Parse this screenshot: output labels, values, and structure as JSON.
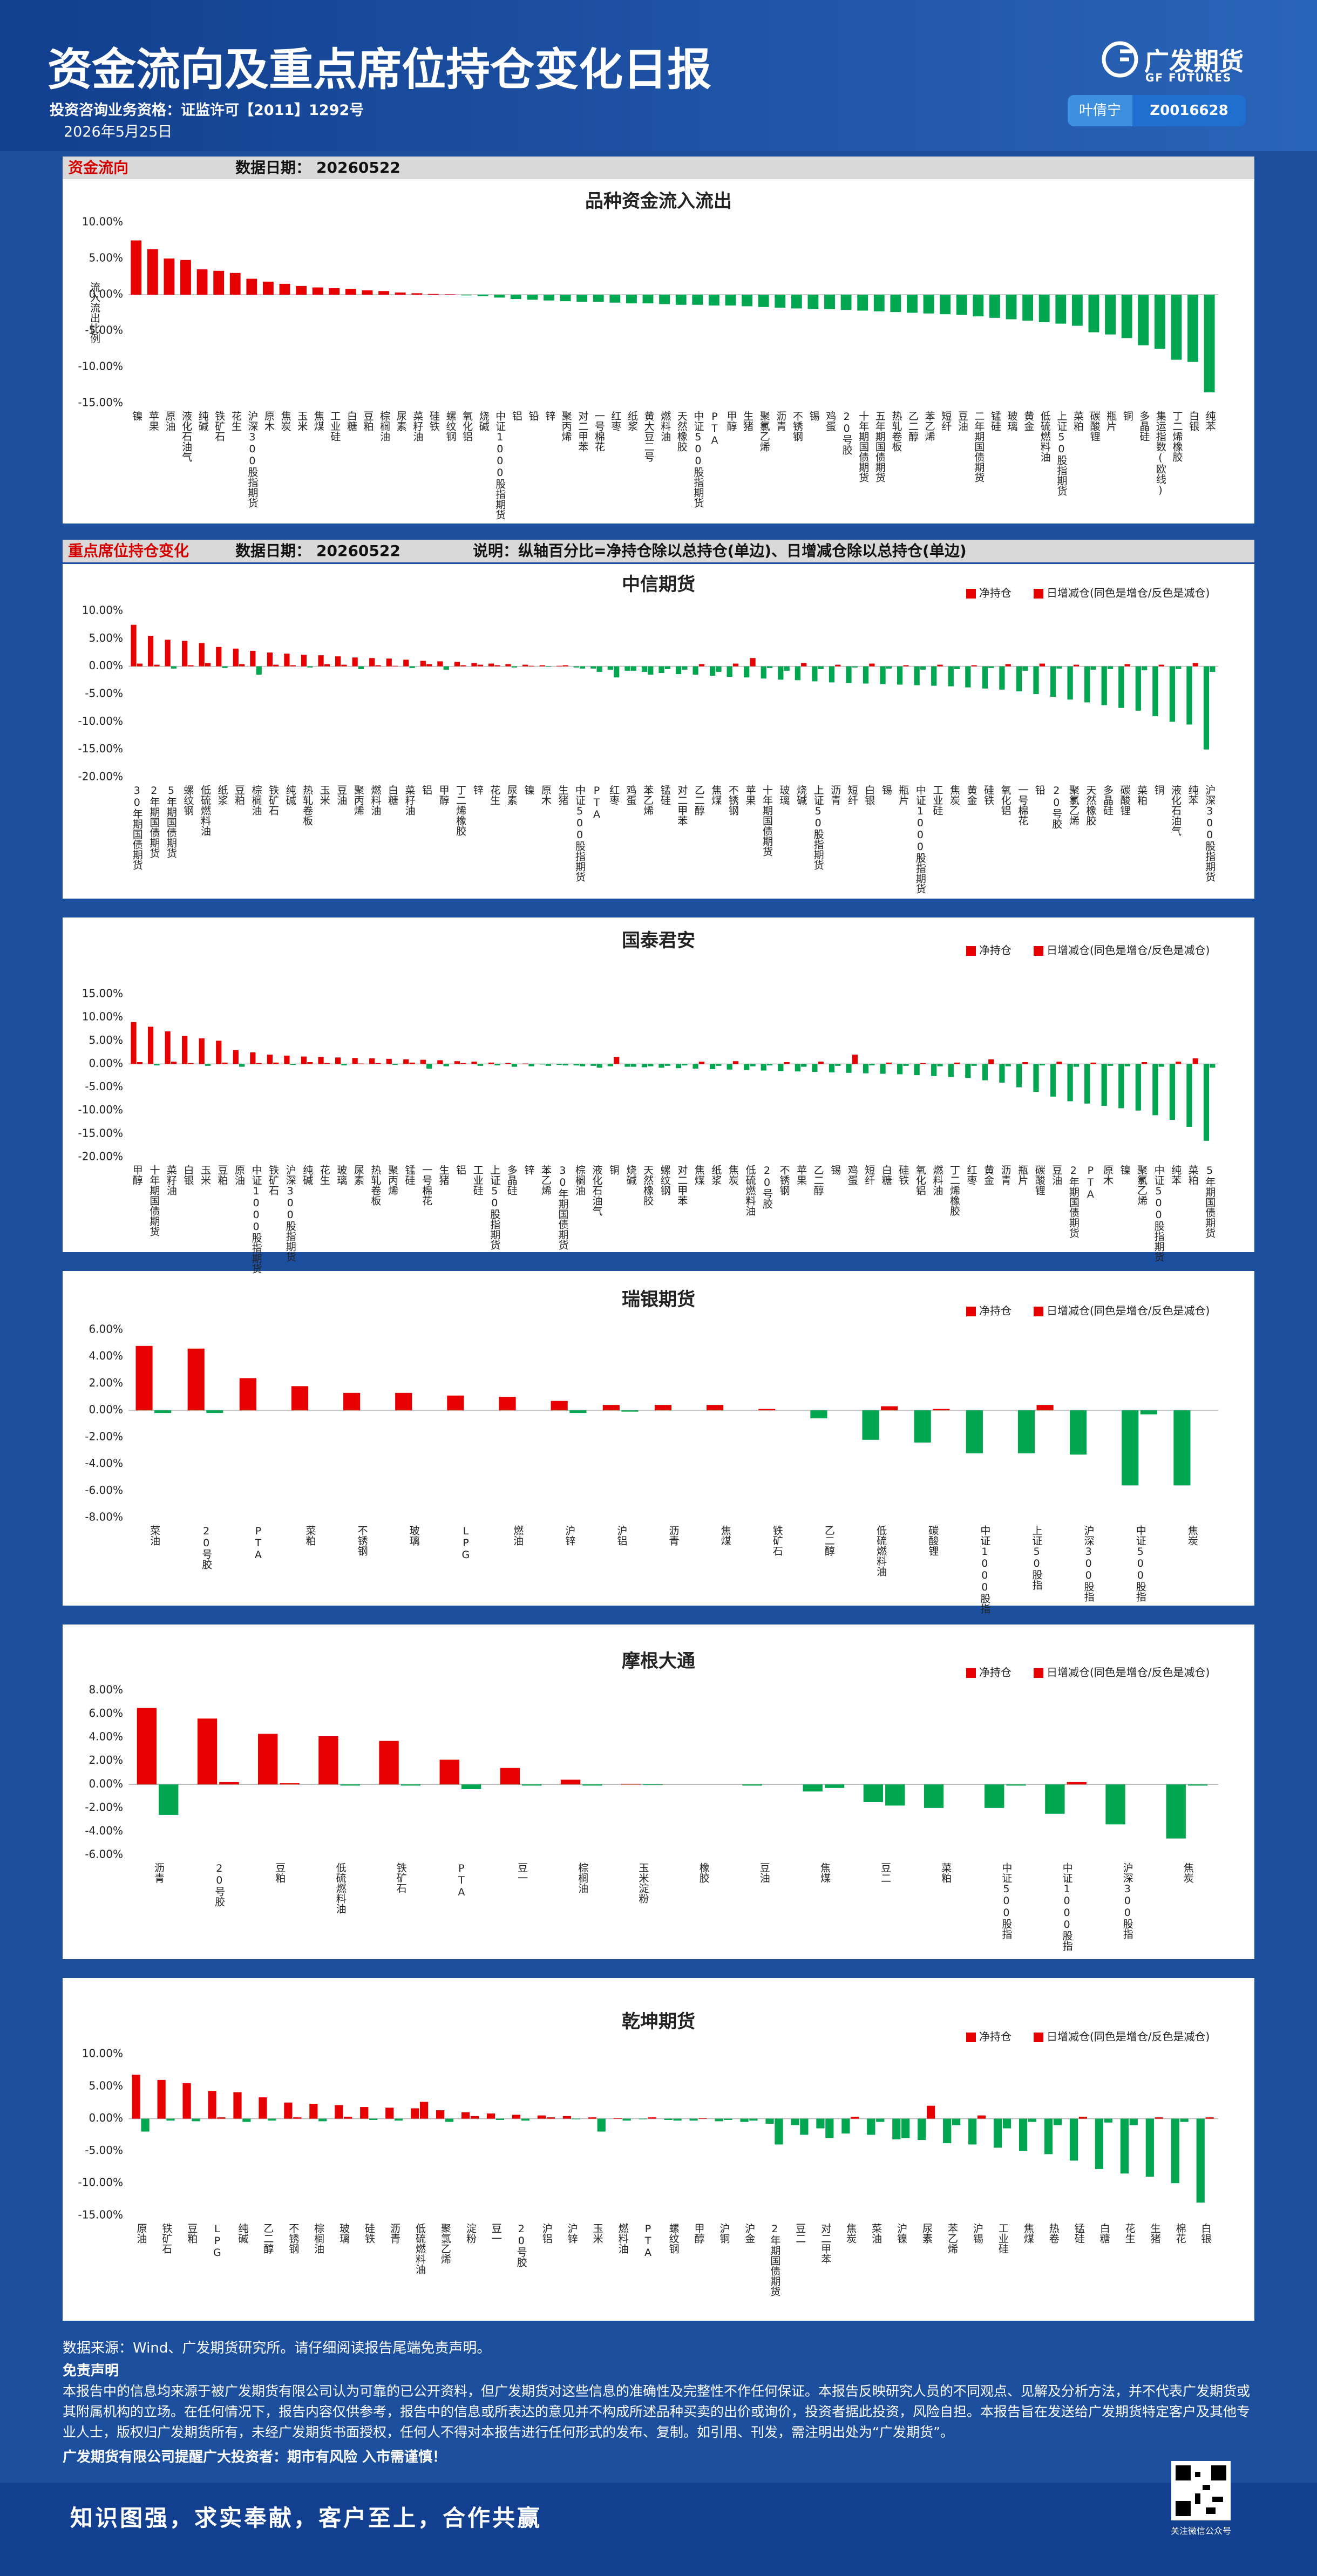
{
  "header": {
    "title": "资金流向及重点席位持仓变化日报",
    "license": "投资咨询业务资格：证监许可【2011】1292号",
    "date": "2026年5月25日",
    "logo": "广发期货",
    "logo_en": "GF FUTURES",
    "analyst": "叶倩宁",
    "analyst_id": "Z0016628"
  },
  "section1": {
    "title": "资金流向",
    "date_label": "数据日期：",
    "date": "20260522"
  },
  "section2": {
    "title": "重点席位持仓变化",
    "date_label": "数据日期：",
    "date": "20260522",
    "note": "说明：纵轴百分比=净持仓除以总持仓(单边)、日增减仓除以总持仓(单边)"
  },
  "chart_data": [
    {
      "type": "bar",
      "title": "品种资金流入流出",
      "y_label": "流入流出比例",
      "color": "#e60000",
      "negative_color": "#00a650",
      "categories": [
        "镍",
        "苹果",
        "原油",
        "液化石油气",
        "纯碱",
        "铁矿石",
        "花生",
        "沪深300股指期货",
        "原木",
        "焦炭",
        "玉米",
        "焦煤",
        "工业硅",
        "白糖",
        "豆粕",
        "棕榈油",
        "尿素",
        "菜籽油",
        "硅铁",
        "螺纹钢",
        "氧化铝",
        "烧碱",
        "中证1000股指期货",
        "铝",
        "铅",
        "锌",
        "聚丙烯",
        "对二甲苯",
        "一号棉花",
        "红枣",
        "纸浆",
        "黄大豆二号",
        "燃料油",
        "天然橡胶",
        "中证500股指期货",
        "PTA",
        "甲醇",
        "生猪",
        "聚氯乙烯",
        "沥青",
        "不锈钢",
        "锡",
        "鸡蛋",
        "20号胶",
        "十年期国债期货",
        "五年期国债期货",
        "热轧卷板",
        "乙二醇",
        "苯乙烯",
        "短纤",
        "豆油",
        "二年期国债期货",
        "锰硅",
        "玻璃",
        "黄金",
        "低硫燃料油",
        "上证50股指期货",
        "菜粕",
        "碳酸锂",
        "瓶片",
        "铜",
        "多晶硅",
        "集运指数(欧线)",
        "丁二烯橡胶",
        "白银",
        "纯苯"
      ],
      "values": [
        7.5,
        6.3,
        5.0,
        4.8,
        3.5,
        3.3,
        3.0,
        2.2,
        1.8,
        1.5,
        1.2,
        1.0,
        0.9,
        0.8,
        0.6,
        0.5,
        0.3,
        0.2,
        0.1,
        0.05,
        -0.1,
        -0.2,
        -0.4,
        -0.6,
        -0.7,
        -0.8,
        -0.9,
        -1.0,
        -1.0,
        -1.1,
        -1.2,
        -1.2,
        -1.3,
        -1.4,
        -1.4,
        -1.5,
        -1.5,
        -1.6,
        -1.7,
        -1.8,
        -1.9,
        -2.0,
        -2.0,
        -2.1,
        -2.2,
        -2.3,
        -2.4,
        -2.5,
        -2.6,
        -2.7,
        -2.8,
        -3.0,
        -3.2,
        -3.4,
        -3.6,
        -3.8,
        -4.0,
        -4.3,
        -5.2,
        -5.5,
        -6.0,
        -7.0,
        -7.5,
        -9.0,
        -9.3,
        -13.5
      ],
      "ylim": [
        -15,
        10
      ],
      "yticks": [
        {
          "value": -15,
          "label": "-15.00%"
        },
        {
          "value": -10,
          "label": "-10.00%"
        },
        {
          "value": -5,
          "label": "-5.00%"
        },
        {
          "value": 0,
          "label": "0.00%"
        },
        {
          "value": 5,
          "label": "5.00%"
        },
        {
          "value": 10,
          "label": "10.00%"
        }
      ]
    },
    {
      "type": "bar",
      "title": "中信期货",
      "negative_color": "#00a650",
      "categories": [
        "30年期国债期货",
        "2年期国债期货",
        "5年期国债期货",
        "螺纹钢",
        "低硫燃料油",
        "纸浆",
        "豆粕",
        "棕榈油",
        "铁矿石",
        "纯碱",
        "热轧卷板",
        "玉米",
        "豆油",
        "聚丙烯",
        "燃料油",
        "白糖",
        "菜籽油",
        "铝",
        "甲醇",
        "丁二烯橡胶",
        "锌",
        "花生",
        "尿素",
        "镍",
        "原木",
        "生猪",
        "中证500股指期货",
        "PTA",
        "红枣",
        "鸡蛋",
        "苯乙烯",
        "锰硅",
        "对二甲苯",
        "乙二醇",
        "焦煤",
        "不锈钢",
        "苹果",
        "十年期国债期货",
        "玻璃",
        "烧碱",
        "上证50股指期货",
        "沥青",
        "短纤",
        "白银",
        "锡",
        "瓶片",
        "中证1000股指期货",
        "工业硅",
        "焦炭",
        "黄金",
        "硅铁",
        "氧化铝",
        "一号棉花",
        "铅",
        "20号胶",
        "聚氯乙烯",
        "天然橡胶",
        "多晶硅",
        "碳酸锂",
        "菜粕",
        "铜",
        "液化石油气",
        "纯苯",
        "沪深300股指期货"
      ],
      "series": [
        {
          "name": "净持仓",
          "color": "#e60000",
          "values": [
            7.5,
            5.5,
            4.8,
            4.6,
            4.2,
            3.5,
            3.2,
            2.8,
            2.5,
            2.3,
            2.1,
            2.0,
            1.8,
            1.6,
            1.5,
            1.4,
            1.2,
            1.0,
            0.9,
            0.8,
            0.6,
            0.5,
            0.4,
            0.3,
            0.2,
            0.1,
            -0.2,
            -0.4,
            -0.6,
            -0.8,
            -1.0,
            -1.2,
            -1.4,
            -1.5,
            -1.7,
            -1.9,
            -2.0,
            -2.2,
            -2.4,
            -2.5,
            -2.7,
            -2.9,
            -3.0,
            -3.1,
            -3.2,
            -3.3,
            -3.4,
            -3.5,
            -3.6,
            -3.8,
            -4.0,
            -4.2,
            -4.5,
            -5.0,
            -5.5,
            -6.0,
            -6.5,
            -7.0,
            -7.5,
            -8.0,
            -9.0,
            -10.0,
            -10.5,
            -15.0
          ]
        },
        {
          "name": "日增减仓(同色是增仓/反色是减仓)",
          "color": "#e60000",
          "values": [
            0.5,
            0.3,
            -0.4,
            0.2,
            0.6,
            -0.3,
            0.4,
            -1.5,
            0.3,
            0.2,
            -0.2,
            0.4,
            0.3,
            -0.5,
            0.2,
            0.1,
            -0.3,
            0.4,
            -0.6,
            0.2,
            0.3,
            0.2,
            -0.2,
            0.1,
            -0.1,
            0.2,
            -0.4,
            -1.0,
            -2.0,
            -0.8,
            -1.5,
            -0.5,
            -0.6,
            0.4,
            -1.0,
            0.5,
            1.5,
            -0.3,
            -0.8,
            0.6,
            -0.5,
            0.3,
            -0.2,
            0.5,
            -0.4,
            0.2,
            -0.6,
            0.3,
            -0.5,
            0.2,
            -0.3,
            0.4,
            -0.8,
            0.5,
            -0.4,
            0.3,
            -0.6,
            -0.5,
            0.4,
            -0.7,
            0.3,
            -0.5,
            0.6,
            -1.0
          ]
        }
      ],
      "ylim": [
        -20,
        10
      ],
      "yticks": [
        {
          "value": -20,
          "label": "-20.00%"
        },
        {
          "value": -15,
          "label": "-15.00%"
        },
        {
          "value": -10,
          "label": "-10.00%"
        },
        {
          "value": -5,
          "label": "-5.00%"
        },
        {
          "value": 0,
          "label": "0.00%"
        },
        {
          "value": 5,
          "label": "5.00%"
        },
        {
          "value": 10,
          "label": "10.00%"
        }
      ]
    },
    {
      "type": "bar",
      "title": "国泰君安",
      "negative_color": "#00a650",
      "categories": [
        "甲醇",
        "十年期国债期货",
        "菜籽油",
        "白银",
        "玉米",
        "豆粕",
        "原油",
        "中证1000股指期货",
        "铁矿石",
        "沪深300股指期货",
        "纯碱",
        "花生",
        "玻璃",
        "尿素",
        "热轧卷板",
        "聚丙烯",
        "锰硅",
        "一号棉花",
        "生猪",
        "铝",
        "工业硅",
        "上证50股指期货",
        "多晶硅",
        "锌",
        "苯乙烯",
        "30年期国债期货",
        "棕榈油",
        "液化石油气",
        "铜",
        "烧碱",
        "天然橡胶",
        "螺纹钢",
        "对二甲苯",
        "焦煤",
        "纸浆",
        "焦炭",
        "低硫燃料油",
        "20号胶",
        "不锈钢",
        "苹果",
        "乙二醇",
        "锡",
        "鸡蛋",
        "短纤",
        "白糖",
        "硅铁",
        "氧化铝",
        "燃料油",
        "丁二烯橡胶",
        "红枣",
        "黄金",
        "沥青",
        "瓶片",
        "碳酸锂",
        "豆油",
        "2年期国债期货",
        "PTA",
        "原木",
        "镍",
        "聚氯乙烯",
        "中证500股指期货",
        "纯苯",
        "菜粕",
        "5年期国债期货"
      ],
      "series": [
        {
          "name": "净持仓",
          "color": "#e60000",
          "values": [
            9.0,
            8.0,
            7.0,
            6.0,
            5.5,
            5.0,
            3.0,
            2.5,
            2.0,
            1.8,
            1.6,
            1.5,
            1.4,
            1.3,
            1.2,
            1.1,
            1.0,
            0.9,
            0.8,
            0.6,
            0.5,
            0.3,
            0.2,
            0.1,
            -0.1,
            -0.2,
            -0.3,
            -0.4,
            -0.5,
            -0.6,
            -0.7,
            -0.8,
            -0.9,
            -1.0,
            -1.1,
            -1.2,
            -1.3,
            -1.4,
            -1.5,
            -1.6,
            -1.7,
            -1.8,
            -1.9,
            -2.0,
            -2.1,
            -2.2,
            -2.4,
            -2.6,
            -2.8,
            -3.0,
            -3.5,
            -4.0,
            -5.0,
            -6.0,
            -7.0,
            -8.0,
            -8.5,
            -9.0,
            -9.5,
            -10.0,
            -11.0,
            -12.0,
            -13.5,
            -16.5
          ]
        },
        {
          "name": "日增减仓(同色是增仓/反色是减仓)",
          "color": "#e60000",
          "values": [
            0.4,
            -0.3,
            0.5,
            0.2,
            -0.4,
            0.3,
            -0.6,
            0.2,
            0.3,
            -0.2,
            0.4,
            0.2,
            -0.3,
            0.1,
            0.2,
            -0.2,
            0.3,
            -1.0,
            -0.5,
            0.2,
            -0.4,
            -0.3,
            -0.6,
            -0.5,
            -0.4,
            -0.3,
            -0.5,
            -0.8,
            1.5,
            -0.6,
            -0.5,
            -0.4,
            -0.3,
            0.5,
            -0.4,
            0.6,
            -0.5,
            -0.3,
            0.4,
            -0.6,
            0.5,
            -0.4,
            2.0,
            -0.3,
            0.3,
            -0.4,
            0.2,
            -0.5,
            0.3,
            -0.4,
            1.0,
            -0.5,
            0.4,
            -0.3,
            0.5,
            -0.6,
            0.3,
            -0.4,
            -0.5,
            0.4,
            -0.6,
            0.5,
            1.2,
            -0.8
          ]
        }
      ],
      "ylim": [
        -20,
        15
      ],
      "yticks": [
        {
          "value": -20,
          "label": "-20.00%"
        },
        {
          "value": -15,
          "label": "-15.00%"
        },
        {
          "value": -10,
          "label": "-10.00%"
        },
        {
          "value": -5,
          "label": "-5.00%"
        },
        {
          "value": 0,
          "label": "0.00%"
        },
        {
          "value": 5,
          "label": "5.00%"
        },
        {
          "value": 10,
          "label": "10.00%"
        },
        {
          "value": 15,
          "label": "15.00%"
        }
      ]
    },
    {
      "type": "bar",
      "title": "瑞银期货",
      "negative_color": "#00a650",
      "categories": [
        "菜油",
        "20号胶",
        "PTA",
        "菜粕",
        "不锈钢",
        "玻璃",
        "LPG",
        "燃油",
        "沪锌",
        "沪铝",
        "沥青",
        "焦煤",
        "铁矿石",
        "乙二醇",
        "低硫燃料油",
        "碳酸锂",
        "中证1000股指",
        "上证50股指",
        "沪深300股指",
        "中证500股指",
        "焦炭"
      ],
      "series": [
        {
          "name": "净持仓",
          "color": "#e60000",
          "values": [
            4.8,
            4.6,
            2.4,
            1.8,
            1.3,
            1.3,
            1.1,
            1.0,
            0.7,
            0.4,
            0.4,
            0.4,
            0.1,
            -0.6,
            -2.2,
            -2.4,
            -3.2,
            -3.2,
            -3.3,
            -5.6,
            -5.6
          ]
        },
        {
          "name": "日增减仓(同色是增仓/反色是减仓)",
          "color": "#e60000",
          "values": [
            -0.2,
            -0.2,
            0,
            0,
            0,
            0,
            0,
            0,
            -0.2,
            -0.1,
            0,
            0,
            0,
            0,
            0.3,
            0.1,
            0,
            0.4,
            0,
            -0.3,
            0
          ]
        }
      ],
      "ylim": [
        -8,
        6
      ],
      "yticks": [
        {
          "value": -8,
          "label": "-8.00%"
        },
        {
          "value": -6,
          "label": "-6.00%"
        },
        {
          "value": -4,
          "label": "-4.00%"
        },
        {
          "value": -2,
          "label": "-2.00%"
        },
        {
          "value": 0,
          "label": "0.00%"
        },
        {
          "value": 2,
          "label": "2.00%"
        },
        {
          "value": 4,
          "label": "4.00%"
        },
        {
          "value": 6,
          "label": "6.00%"
        }
      ]
    },
    {
      "type": "bar",
      "title": "摩根大通",
      "negative_color": "#00a650",
      "categories": [
        "沥青",
        "20号胶",
        "豆粕",
        "低硫燃料油",
        "铁矿石",
        "PTA",
        "豆一",
        "棕榈油",
        "玉米淀粉",
        "橡胶",
        "豆油",
        "焦煤",
        "豆二",
        "菜粕",
        "中证500股指",
        "中证1000股指",
        "沪深300股指",
        "焦炭"
      ],
      "series": [
        {
          "name": "净持仓",
          "color": "#e60000",
          "values": [
            6.5,
            5.6,
            4.3,
            4.1,
            3.7,
            2.1,
            1.4,
            0.4,
            0.05,
            0,
            -0.1,
            -0.6,
            -1.5,
            -2.0,
            -2.0,
            -2.5,
            -3.4,
            -4.6
          ]
        },
        {
          "name": "日增减仓(同色是增仓/反色是减仓)",
          "color": "#e60000",
          "values": [
            -2.6,
            0.2,
            0.1,
            -0.1,
            -0.1,
            -0.4,
            -0.1,
            -0.1,
            -0.05,
            0,
            0,
            -0.3,
            -1.8,
            0,
            -0.1,
            0.2,
            0,
            -0.1
          ]
        }
      ],
      "ylim": [
        -6,
        8
      ],
      "yticks": [
        {
          "value": -6,
          "label": "-6.00%"
        },
        {
          "value": -4,
          "label": "-4.00%"
        },
        {
          "value": -2,
          "label": "-2.00%"
        },
        {
          "value": 0,
          "label": "0.00%"
        },
        {
          "value": 2,
          "label": "2.00%"
        },
        {
          "value": 4,
          "label": "4.00%"
        },
        {
          "value": 6,
          "label": "6.00%"
        },
        {
          "value": 8,
          "label": "8.00%"
        }
      ]
    },
    {
      "type": "bar",
      "title": "乾坤期货",
      "negative_color": "#00a650",
      "categories": [
        "原油",
        "铁矿石",
        "豆粕",
        "LPG",
        "纯碱",
        "乙二醇",
        "不锈钢",
        "棕榈油",
        "玻璃",
        "硅铁",
        "沥青",
        "低硫燃料油",
        "聚氯乙烯",
        "淀粉",
        "豆一",
        "20号胶",
        "沪铝",
        "沪锌",
        "玉米",
        "燃料油",
        "PTA",
        "螺纹钢",
        "甲醇",
        "沪铜",
        "沪金",
        "2年期国债期货",
        "豆二",
        "对二甲苯",
        "焦炭",
        "菜油",
        "沪镍",
        "尿素",
        "苯乙烯",
        "沪锡",
        "工业硅",
        "焦煤",
        "热卷",
        "锰硅",
        "白糖",
        "花生",
        "生猪",
        "棉花",
        "白银"
      ],
      "series": [
        {
          "name": "净持仓",
          "color": "#e60000",
          "values": [
            6.8,
            6.0,
            5.5,
            4.3,
            4.1,
            3.3,
            2.5,
            2.3,
            2.1,
            1.8,
            1.7,
            1.6,
            1.3,
            1.0,
            0.8,
            0.6,
            0.5,
            0.4,
            0.2,
            0.1,
            -0.1,
            -0.2,
            -0.3,
            -0.4,
            -0.5,
            -0.8,
            -1.0,
            -1.5,
            -2.3,
            -2.5,
            -3.2,
            -3.3,
            -3.8,
            -4.0,
            -4.5,
            -5.0,
            -5.5,
            -6.5,
            -7.8,
            -8.5,
            -9.0,
            -10.0,
            -13.0
          ]
        },
        {
          "name": "日增减仓(同色是增仓/反色是减仓)",
          "color": "#e60000",
          "values": [
            -2.0,
            -0.3,
            -0.4,
            0.2,
            -0.5,
            -0.3,
            0.2,
            -0.4,
            0.3,
            -0.2,
            -0.3,
            2.6,
            -0.5,
            0.4,
            -0.2,
            -0.3,
            0.2,
            -0.1,
            -2.0,
            -0.3,
            0.2,
            -0.3,
            0.1,
            -0.2,
            -0.3,
            -4.0,
            -2.5,
            -3.0,
            0.3,
            -0.5,
            -3.0,
            2.0,
            -1.0,
            0.5,
            -1.5,
            -0.5,
            -1.0,
            0.3,
            -0.6,
            -1.0,
            0.2,
            -0.5,
            0.2
          ]
        }
      ],
      "ylim": [
        -15,
        10
      ],
      "yticks": [
        {
          "value": -15,
          "label": "-15.00%"
        },
        {
          "value": -10,
          "label": "-10.00%"
        },
        {
          "value": -5,
          "label": "-5.00%"
        },
        {
          "value": 0,
          "label": "0.00%"
        },
        {
          "value": 5,
          "label": "5.00%"
        },
        {
          "value": 10,
          "label": "10.00%"
        }
      ]
    }
  ],
  "footer": {
    "source": "数据来源：Wind、广发期货研究所。请仔细阅读报告尾端免责声明。",
    "disclaimer_title": "免责声明",
    "disclaimer": "本报告中的信息均来源于被广发期货有限公司认为可靠的已公开资料，但广发期货对这些信息的准确性及完整性不作任何保证。本报告反映研究人员的不同观点、见解及分析方法，并不代表广发期货或其附属机构的立场。在任何情况下，报告内容仅供参考，报告中的信息或所表达的意见并不构成所述品种买卖的出价或询价，投资者据此投资，风险自担。本报告旨在发送给广发期货特定客户及其他专业人士，版权归广发期货所有，未经广发期货书面授权，任何人不得对本报告进行任何形式的发布、复制。如引用、刊发，需注明出处为“广发期货”。",
    "reminder": "广发期货有限公司提醒广大投资者：期市有风险 入市需谨慎！",
    "slogan": "知识图强，求实奉献，客户至上，合作共赢",
    "qr_caption": "关注微信公众号"
  }
}
